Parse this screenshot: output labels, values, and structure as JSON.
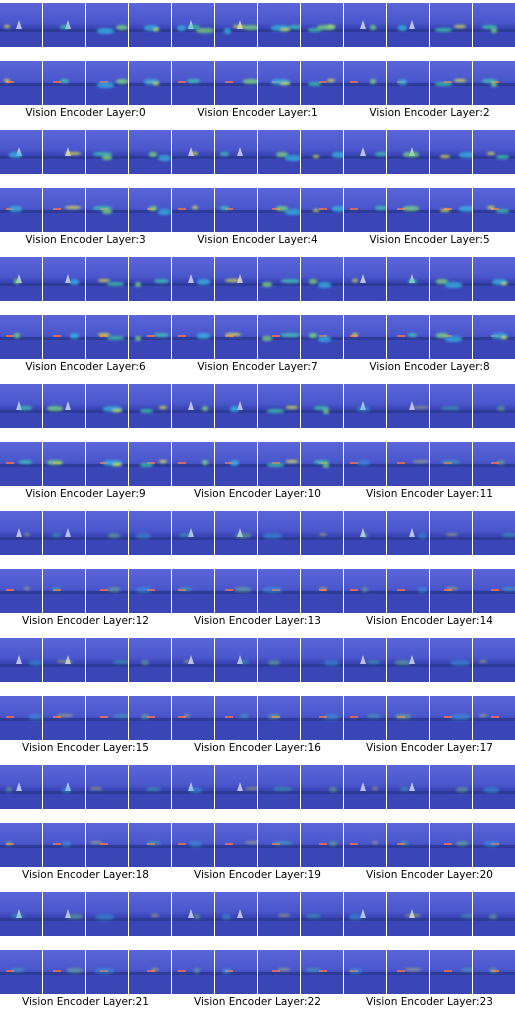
{
  "figure": {
    "label_prefix": "Vision Encoder Layer:",
    "layers": [
      {
        "label": "Vision Encoder Layer:0"
      },
      {
        "label": "Vision Encoder Layer:1"
      },
      {
        "label": "Vision Encoder Layer:2"
      },
      {
        "label": "Vision Encoder Layer:3"
      },
      {
        "label": "Vision Encoder Layer:4"
      },
      {
        "label": "Vision Encoder Layer:5"
      },
      {
        "label": "Vision Encoder Layer:6"
      },
      {
        "label": "Vision Encoder Layer:7"
      },
      {
        "label": "Vision Encoder Layer:8"
      },
      {
        "label": "Vision Encoder Layer:9"
      },
      {
        "label": "Vision Encoder Layer:10"
      },
      {
        "label": "Vision Encoder Layer:11"
      },
      {
        "label": "Vision Encoder Layer:12"
      },
      {
        "label": "Vision Encoder Layer:13"
      },
      {
        "label": "Vision Encoder Layer:14"
      },
      {
        "label": "Vision Encoder Layer:15"
      },
      {
        "label": "Vision Encoder Layer:16"
      },
      {
        "label": "Vision Encoder Layer:17"
      },
      {
        "label": "Vision Encoder Layer:18"
      },
      {
        "label": "Vision Encoder Layer:19"
      },
      {
        "label": "Vision Encoder Layer:20"
      },
      {
        "label": "Vision Encoder Layer:21"
      },
      {
        "label": "Vision Encoder Layer:22"
      },
      {
        "label": "Vision Encoder Layer:23"
      }
    ],
    "colors": {
      "background": "#ffffff",
      "heatmap_base": "#4a56cc",
      "heatmap_hot": "#e8f040",
      "heatmap_warm": "#3fd0b0",
      "label_text": "#000000"
    }
  }
}
